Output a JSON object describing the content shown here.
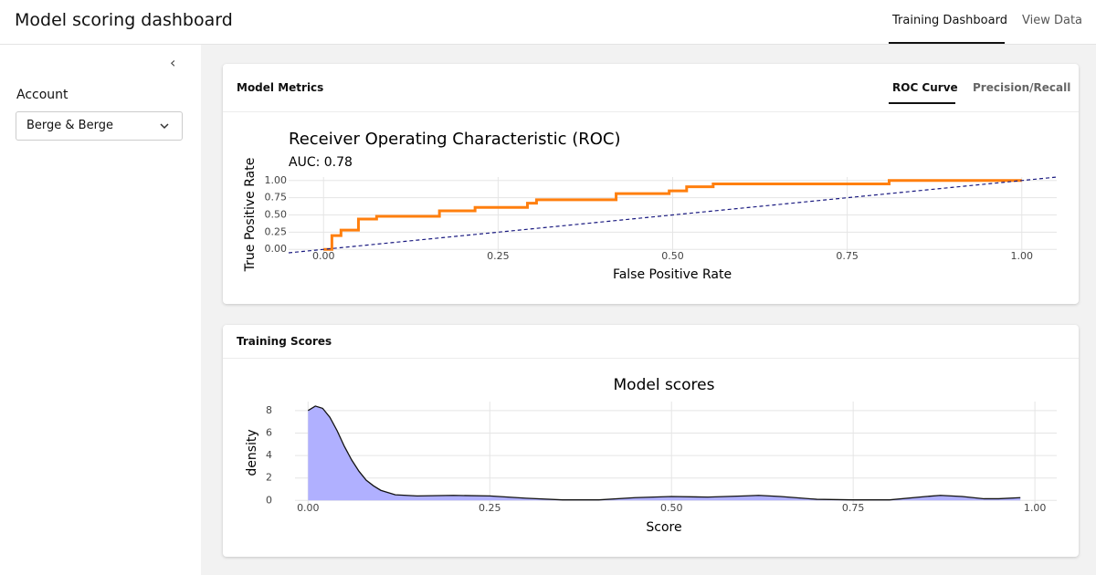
{
  "header": {
    "title": "Model scoring dashboard",
    "tabs": [
      "Training Dashboard",
      "View Data"
    ]
  },
  "sidebar": {
    "account_label": "Account",
    "account_value": "Berge & Berge"
  },
  "panels": [
    {
      "title": "Model Metrics",
      "tabs": [
        "ROC Curve",
        "Precision/Recall"
      ]
    },
    {
      "title": "Training Scores"
    }
  ],
  "chart_data": [
    {
      "type": "line",
      "title": "Receiver Operating Characteristic (ROC)",
      "subtitle": "AUC: 0.78",
      "x_label": "False Positive Rate",
      "y_label": "True Positive Rate",
      "xlim": [
        -0.05,
        1.05
      ],
      "ylim": [
        -0.05,
        1.05
      ],
      "grid": true,
      "xticks": [
        {
          "value": 0,
          "label": "0.00"
        },
        {
          "value": 0.25,
          "label": "0.25"
        },
        {
          "value": 0.5,
          "label": "0.50"
        },
        {
          "value": 0.75,
          "label": "0.75"
        },
        {
          "value": 1,
          "label": "1.00"
        }
      ],
      "yticks": [
        {
          "value": 0,
          "label": "0.00"
        },
        {
          "value": 0.25,
          "label": "0.25"
        },
        {
          "value": 0.5,
          "label": "0.50"
        },
        {
          "value": 0.75,
          "label": "0.75"
        },
        {
          "value": 1,
          "label": "1.00"
        }
      ],
      "series": [
        {
          "color": "#ff7f0e",
          "width": 3,
          "x": [
            0,
            0.012,
            0.012,
            0.025,
            0.025,
            0.05,
            0.05,
            0.076,
            0.076,
            0.166,
            0.166,
            0.217,
            0.217,
            0.292,
            0.292,
            0.305,
            0.305,
            0.419,
            0.419,
            0.495,
            0.495,
            0.52,
            0.52,
            0.558,
            0.558,
            0.81,
            0.81,
            1
          ],
          "values": [
            0,
            0,
            0.2,
            0.2,
            0.28,
            0.28,
            0.44,
            0.44,
            0.48,
            0.48,
            0.56,
            0.56,
            0.61,
            0.61,
            0.67,
            0.67,
            0.72,
            0.72,
            0.81,
            0.81,
            0.85,
            0.85,
            0.91,
            0.91,
            0.95,
            0.95,
            1,
            1
          ]
        },
        {
          "color": "#1a1a80",
          "width": 1.2,
          "dashed": true,
          "x": [
            -0.05,
            1.05
          ],
          "values": [
            -0.05,
            1.05
          ]
        }
      ]
    },
    {
      "type": "area",
      "title": "Model scores",
      "x_label": "Score",
      "y_label": "density",
      "xlim": [
        -0.018,
        1.03
      ],
      "ylim": [
        -0.3,
        8.8
      ],
      "grid": true,
      "xticks": [
        {
          "value": 0,
          "label": "0.00"
        },
        {
          "value": 0.25,
          "label": "0.25"
        },
        {
          "value": 0.5,
          "label": "0.50"
        },
        {
          "value": 0.75,
          "label": "0.75"
        },
        {
          "value": 1,
          "label": "1.00"
        }
      ],
      "yticks": [
        0,
        2,
        4,
        6,
        8
      ],
      "series": [
        {
          "color": "#b0b0ff",
          "line_color": "#111111",
          "x": [
            0,
            0.01,
            0.02,
            0.03,
            0.04,
            0.05,
            0.06,
            0.07,
            0.08,
            0.09,
            0.1,
            0.12,
            0.15,
            0.2,
            0.25,
            0.3,
            0.35,
            0.4,
            0.45,
            0.5,
            0.55,
            0.6,
            0.62,
            0.65,
            0.7,
            0.75,
            0.8,
            0.85,
            0.87,
            0.9,
            0.93,
            0.95,
            0.98
          ],
          "values": [
            8.0,
            8.4,
            8.2,
            7.4,
            6.2,
            4.8,
            3.6,
            2.6,
            1.8,
            1.3,
            0.9,
            0.5,
            0.4,
            0.45,
            0.4,
            0.2,
            0.05,
            0.05,
            0.25,
            0.35,
            0.3,
            0.4,
            0.45,
            0.35,
            0.1,
            0.05,
            0.05,
            0.35,
            0.45,
            0.35,
            0.15,
            0.15,
            0.25
          ]
        }
      ]
    }
  ]
}
